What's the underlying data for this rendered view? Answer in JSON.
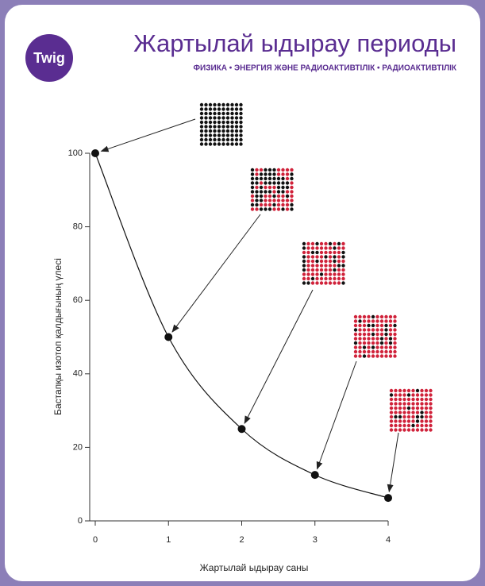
{
  "logo": "Twig",
  "chart_data": {
    "type": "line",
    "title": "Жартылай ыдырау периоды",
    "subtitle": "ФИЗИКА • ЭНЕРГИЯ ЖӘНЕ РАДИОАКТИВТІЛІК • РАДИОАКТИВТІЛІК",
    "x_label": "Жартылай ыдырау саны",
    "y_label": "Бастапқы изотоп қалдығының үлесі",
    "x": [
      0,
      1,
      2,
      3,
      4
    ],
    "values": [
      100,
      50,
      25,
      12.5,
      6.25
    ],
    "color": "#111111",
    "xlim": [
      0,
      4
    ],
    "xticks": [
      0,
      1,
      2,
      3,
      4
    ],
    "ylim": [
      0,
      100
    ],
    "yticks": [
      0,
      20,
      40,
      60,
      80,
      100
    ]
  }
}
